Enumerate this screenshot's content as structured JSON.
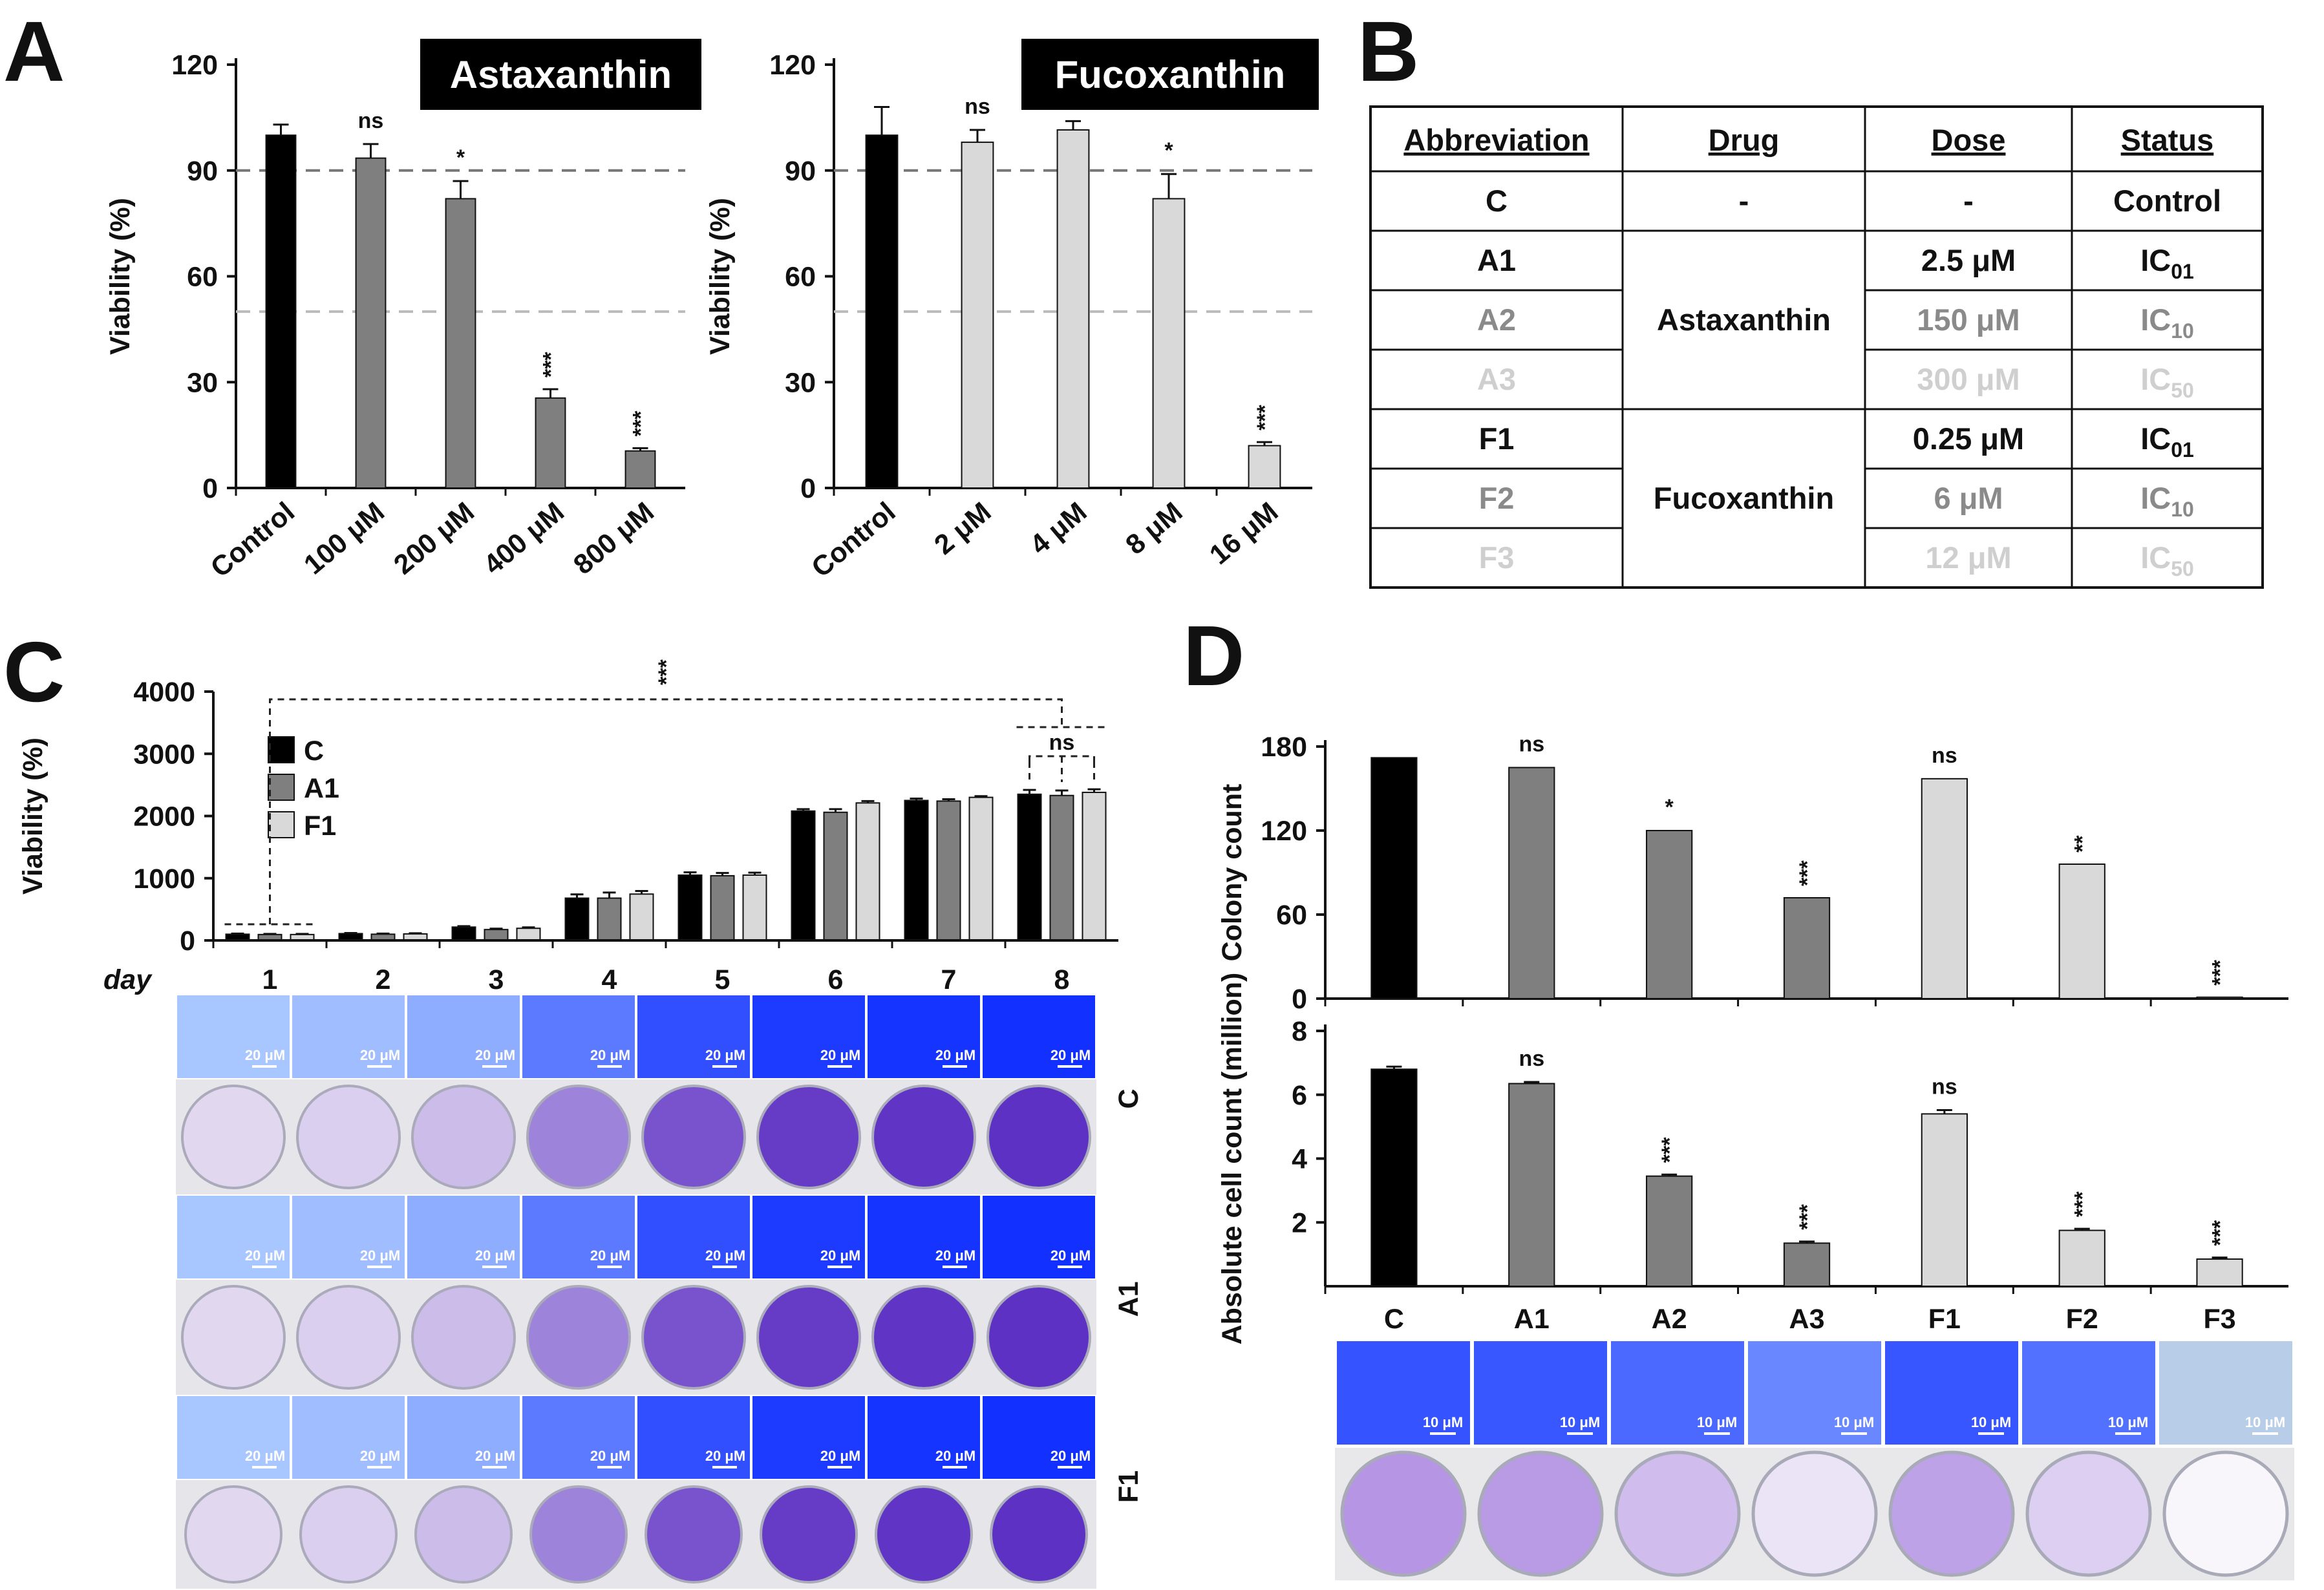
{
  "panel_letters": {
    "a": "A",
    "b": "B",
    "c": "C",
    "d": "D"
  },
  "colors": {
    "black": "#000000",
    "dark_gray": "#7f7f7f",
    "light_gray": "#d9d9d9",
    "stain_blue": "#2f3fdc",
    "stain_purple": "#6b3fb8"
  },
  "chart_data": [
    {
      "id": "A-left",
      "type": "bar",
      "title": "Astaxanthin",
      "ylabel": "Viability (%)",
      "ylim": [
        0,
        120
      ],
      "yticks": [
        "0",
        "30",
        "60",
        "90",
        "120"
      ],
      "reference_lines": [
        90,
        50
      ],
      "categories": [
        "Control",
        "100 μM",
        "200 μM",
        "400 μM",
        "800 μM"
      ],
      "values": [
        100,
        93.5,
        82,
        25.5,
        10.5
      ],
      "errors": [
        3,
        4,
        5,
        2.5,
        0.8
      ],
      "annotations": [
        "",
        "ns",
        "*",
        "***",
        "***"
      ],
      "bar_colors": [
        "#000000",
        "#7f7f7f",
        "#7f7f7f",
        "#7f7f7f",
        "#7f7f7f"
      ]
    },
    {
      "id": "A-right",
      "type": "bar",
      "title": "Fucoxanthin",
      "ylabel": "Viability (%)",
      "ylim": [
        0,
        120
      ],
      "yticks": [
        "0",
        "30",
        "60",
        "90",
        "120"
      ],
      "reference_lines": [
        90,
        50
      ],
      "categories": [
        "Control",
        "2 μM",
        "4 μM",
        "8 μM",
        "16 μM"
      ],
      "values": [
        100,
        98,
        101.5,
        82,
        12
      ],
      "errors": [
        8,
        3.5,
        2.5,
        7,
        1
      ],
      "annotations": [
        "",
        "ns",
        "",
        "*",
        "***"
      ],
      "bar_colors": [
        "#000000",
        "#d9d9d9",
        "#d9d9d9",
        "#d9d9d9",
        "#d9d9d9"
      ]
    },
    {
      "id": "C",
      "type": "bar",
      "ylabel": "Viability (%)",
      "xlabel": "day",
      "ylim": [
        0,
        4000
      ],
      "yticks": [
        "0",
        "1000",
        "2000",
        "3000",
        "4000"
      ],
      "categories": [
        "1",
        "2",
        "3",
        "4",
        "5",
        "6",
        "7",
        "8"
      ],
      "series": [
        {
          "name": "C",
          "color": "#000000",
          "values": [
            100,
            110,
            215,
            680,
            1050,
            2080,
            2250,
            2350
          ],
          "errors": [
            10,
            10,
            15,
            60,
            45,
            30,
            30,
            70
          ]
        },
        {
          "name": "A1",
          "color": "#7f7f7f",
          "values": [
            95,
            100,
            175,
            680,
            1040,
            2060,
            2240,
            2330
          ],
          "errors": [
            10,
            10,
            15,
            90,
            45,
            50,
            30,
            80
          ]
        },
        {
          "name": "F1",
          "color": "#d9d9d9",
          "values": [
            95,
            105,
            195,
            745,
            1050,
            2210,
            2300,
            2380
          ],
          "errors": [
            10,
            10,
            15,
            50,
            40,
            30,
            20,
            50
          ]
        }
      ],
      "significance": [
        "***",
        "ns"
      ],
      "image_row_labels": [
        "C",
        "A1",
        "F1"
      ],
      "scale_bar_label": "20 μM"
    },
    {
      "id": "D-top",
      "type": "bar",
      "ylabel": "Colony count",
      "ylim": [
        0,
        180
      ],
      "yticks": [
        "0",
        "60",
        "120",
        "180"
      ],
      "categories": [
        "C",
        "A1",
        "A2",
        "A3",
        "F1",
        "F2",
        "F3"
      ],
      "values": [
        172,
        165,
        120,
        72,
        157,
        96,
        1
      ],
      "annotations": [
        "",
        "ns",
        "*",
        "***",
        "ns",
        "**",
        "***"
      ],
      "bar_colors": [
        "#000000",
        "#7f7f7f",
        "#7f7f7f",
        "#7f7f7f",
        "#d9d9d9",
        "#d9d9d9",
        "#d9d9d9"
      ]
    },
    {
      "id": "D-bottom",
      "type": "bar",
      "ylabel": "Absolute cell count (million)",
      "ylim": [
        0,
        8
      ],
      "yticks": [
        "2",
        "4",
        "6",
        "8"
      ],
      "categories": [
        "C",
        "A1",
        "A2",
        "A3",
        "F1",
        "F2",
        "F3"
      ],
      "values": [
        6.8,
        6.35,
        3.45,
        1.35,
        5.4,
        1.75,
        0.85
      ],
      "errors": [
        0.08,
        0.05,
        0.05,
        0.05,
        0.12,
        0.05,
        0.05
      ],
      "annotations": [
        "",
        "ns",
        "***",
        "***",
        "ns",
        "***",
        "***"
      ],
      "bar_colors": [
        "#000000",
        "#7f7f7f",
        "#7f7f7f",
        "#7f7f7f",
        "#d9d9d9",
        "#d9d9d9",
        "#d9d9d9"
      ],
      "scale_bar_label": "10 μM"
    }
  ],
  "table_b": {
    "headers": [
      "Abbreviation",
      "Drug",
      "Dose",
      "Status"
    ],
    "rows": [
      {
        "abbr": "C",
        "drug": "-",
        "dose": "-",
        "status": "Control",
        "sub": "",
        "color": "#111111"
      },
      {
        "abbr": "A1",
        "drug": "Astaxanthin",
        "dose": "2.5 μM",
        "status": "IC",
        "sub": "01",
        "color": "#111111"
      },
      {
        "abbr": "A2",
        "drug": "",
        "dose": "150 μM",
        "status": "IC",
        "sub": "10",
        "color": "#8a8a8a"
      },
      {
        "abbr": "A3",
        "drug": "",
        "dose": "300 μM",
        "status": "IC",
        "sub": "50",
        "color": "#cfcfcf"
      },
      {
        "abbr": "F1",
        "drug": "Fucoxanthin",
        "dose": "0.25 μM",
        "status": "IC",
        "sub": "01",
        "color": "#111111"
      },
      {
        "abbr": "F2",
        "drug": "",
        "dose": "6 μM",
        "status": "IC",
        "sub": "10",
        "color": "#8a8a8a"
      },
      {
        "abbr": "F3",
        "drug": "",
        "dose": "12 μM",
        "status": "IC",
        "sub": "50",
        "color": "#cfcfcf"
      }
    ]
  }
}
